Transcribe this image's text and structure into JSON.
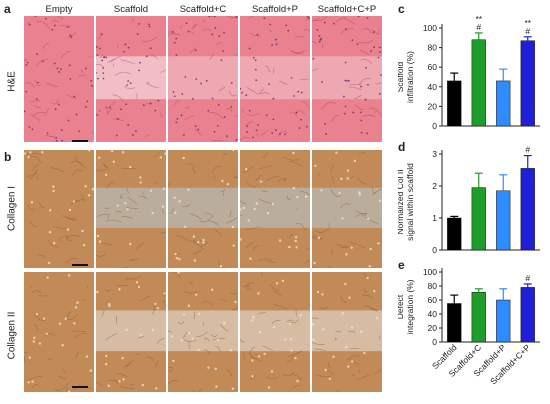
{
  "figure": {
    "panels": {
      "a": "a",
      "b": "b",
      "c": "c",
      "d": "d",
      "e": "e"
    },
    "columns": [
      "Empty",
      "Scaffold",
      "Scaffold+C",
      "Scaffold+P",
      "Scaffold+C+P"
    ],
    "rows": {
      "he": "H&E",
      "collagen1": "Collagen I",
      "collagen2": "Collagen II"
    },
    "colors": {
      "he_bg": "#e9828e",
      "he_light": "#f3c9d0",
      "collagen_brown": "#c18a57",
      "collagen_light": "#d9c8b5",
      "collagen_grey": "#b9b5ae"
    }
  },
  "chart_data": [
    {
      "type": "bar",
      "panel": "c",
      "categories": [
        "Scaffold",
        "Scaffold+C",
        "Scaffold+P",
        "Scaffold+C+P"
      ],
      "values": [
        46,
        88,
        46,
        87
      ],
      "errors": [
        8,
        7,
        12,
        4
      ],
      "annotations": [
        [],
        [
          "**",
          "#"
        ],
        [],
        [
          "**",
          "#"
        ]
      ],
      "colors": [
        "#000000",
        "#1f9d2a",
        "#2f8cff",
        "#1f1fd6"
      ],
      "ylabel": "Scaffold\ninfiltration (%)",
      "ylim": [
        0,
        100
      ],
      "yticks": [
        0,
        20,
        40,
        60,
        80,
        100
      ]
    },
    {
      "type": "bar",
      "panel": "d",
      "categories": [
        "Scaffold",
        "Scaffold+C",
        "Scaffold+P",
        "Scaffold+C+P"
      ],
      "values": [
        1.0,
        1.95,
        1.85,
        2.55
      ],
      "errors": [
        0.05,
        0.45,
        0.5,
        0.4
      ],
      "annotations": [
        [],
        [],
        [],
        [
          "#"
        ]
      ],
      "colors": [
        "#000000",
        "#1f9d2a",
        "#2f8cff",
        "#1f1fd6"
      ],
      "ylabel": "Normalized Col II\nsignal within scaffold",
      "ylim": [
        0,
        3
      ],
      "yticks": [
        0,
        1,
        2,
        3
      ]
    },
    {
      "type": "bar",
      "panel": "e",
      "categories": [
        "Scaffold",
        "Scaffold+C",
        "Scaffold+P",
        "Scaffold+C+P"
      ],
      "values": [
        55,
        71,
        60,
        78
      ],
      "errors": [
        12,
        5,
        16,
        5
      ],
      "annotations": [
        [],
        [],
        [],
        [
          "#"
        ]
      ],
      "colors": [
        "#000000",
        "#1f9d2a",
        "#2f8cff",
        "#1f1fd6"
      ],
      "ylabel": "Defect\nintegration (%)",
      "ylim": [
        0,
        100
      ],
      "yticks": [
        0,
        20,
        40,
        60,
        80,
        100
      ]
    }
  ]
}
